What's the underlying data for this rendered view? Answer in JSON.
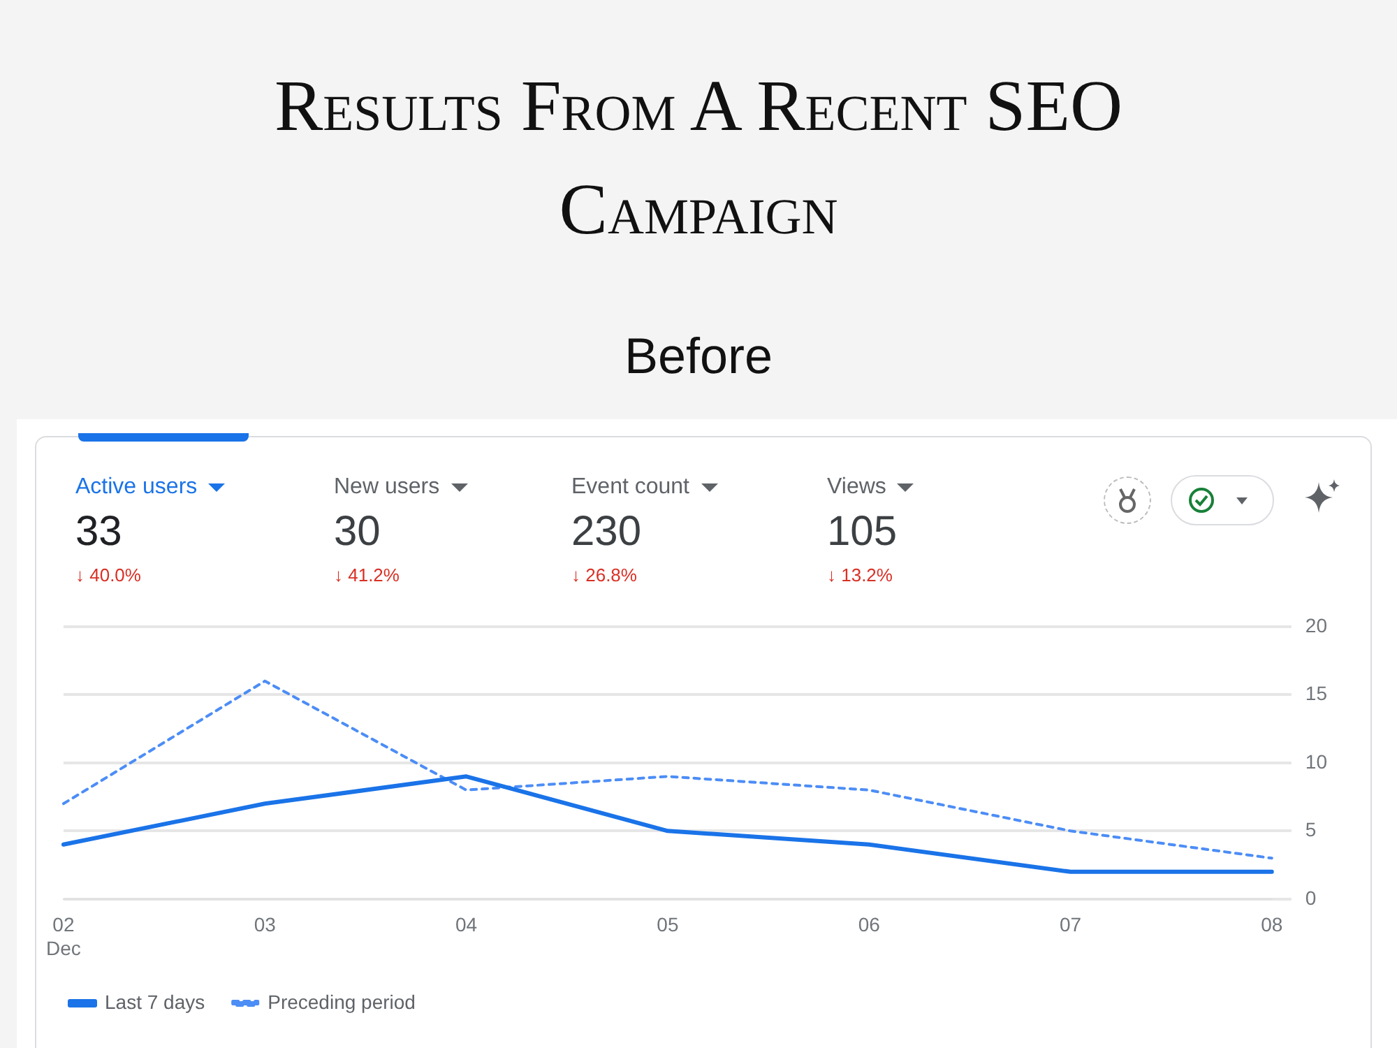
{
  "chart_data": {
    "type": "line",
    "title": "Results From A Recent SEO Campaign",
    "subtitle": "Before",
    "categories": [
      "02\nDec",
      "03",
      "04",
      "05",
      "06",
      "07",
      "08"
    ],
    "series": [
      {
        "name": "Last 7 days",
        "color": "#1a73e8",
        "line_style": "solid",
        "values": [
          4,
          7,
          9,
          5,
          4,
          2,
          2
        ]
      },
      {
        "name": "Preceding period",
        "color": "#4c8df6",
        "line_style": "dashed",
        "values": [
          7,
          16,
          8,
          9,
          8,
          5,
          3
        ]
      }
    ],
    "ylim": [
      0,
      20
    ],
    "yticks": [
      0,
      5,
      10,
      15,
      20
    ],
    "grid": "y",
    "legend": "bottom left",
    "marker": "none",
    "annotations": [
      "Active users",
      "33",
      "↓ 40.0%",
      "New users",
      "30",
      "↓ 41.2%",
      "Event count",
      "230",
      "↓ 26.8%",
      "Views",
      "105",
      "↓ 13.2%"
    ]
  }
}
